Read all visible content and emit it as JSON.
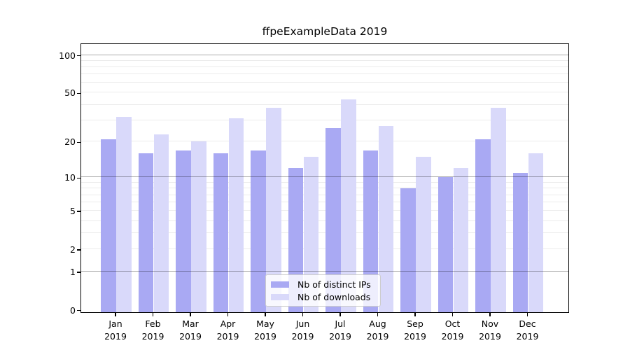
{
  "title": "ffpeExampleData 2019",
  "chart_data": {
    "type": "bar",
    "title": "ffpeExampleData 2019",
    "categories": [
      "Jan",
      "Feb",
      "Mar",
      "Apr",
      "May",
      "Jun",
      "Jul",
      "Aug",
      "Sep",
      "Oct",
      "Nov",
      "Dec"
    ],
    "category_year": "2019",
    "series": [
      {
        "name": "Nb of distinct IPs",
        "color": "#a9a9f3",
        "values": [
          21,
          16,
          17,
          16,
          17,
          12,
          26,
          17,
          8,
          10,
          21,
          11
        ]
      },
      {
        "name": "Nb of downloads",
        "color": "#d9d9fa",
        "values": [
          32,
          23,
          20,
          31,
          38,
          15,
          44,
          27,
          15,
          12,
          38,
          16
        ]
      }
    ],
    "xlabel": "",
    "ylabel": "",
    "yscale": "log1p",
    "ylim": [
      0,
      125
    ],
    "yticks": [
      0,
      1,
      2,
      5,
      10,
      20,
      50,
      100
    ],
    "gridlines": {
      "major": [
        1,
        10,
        100
      ],
      "minor": [
        2,
        3,
        4,
        5,
        6,
        7,
        8,
        9,
        20,
        30,
        40,
        50,
        60,
        70,
        80,
        90
      ],
      "grid_on": true
    },
    "legend_position": "lower center"
  }
}
